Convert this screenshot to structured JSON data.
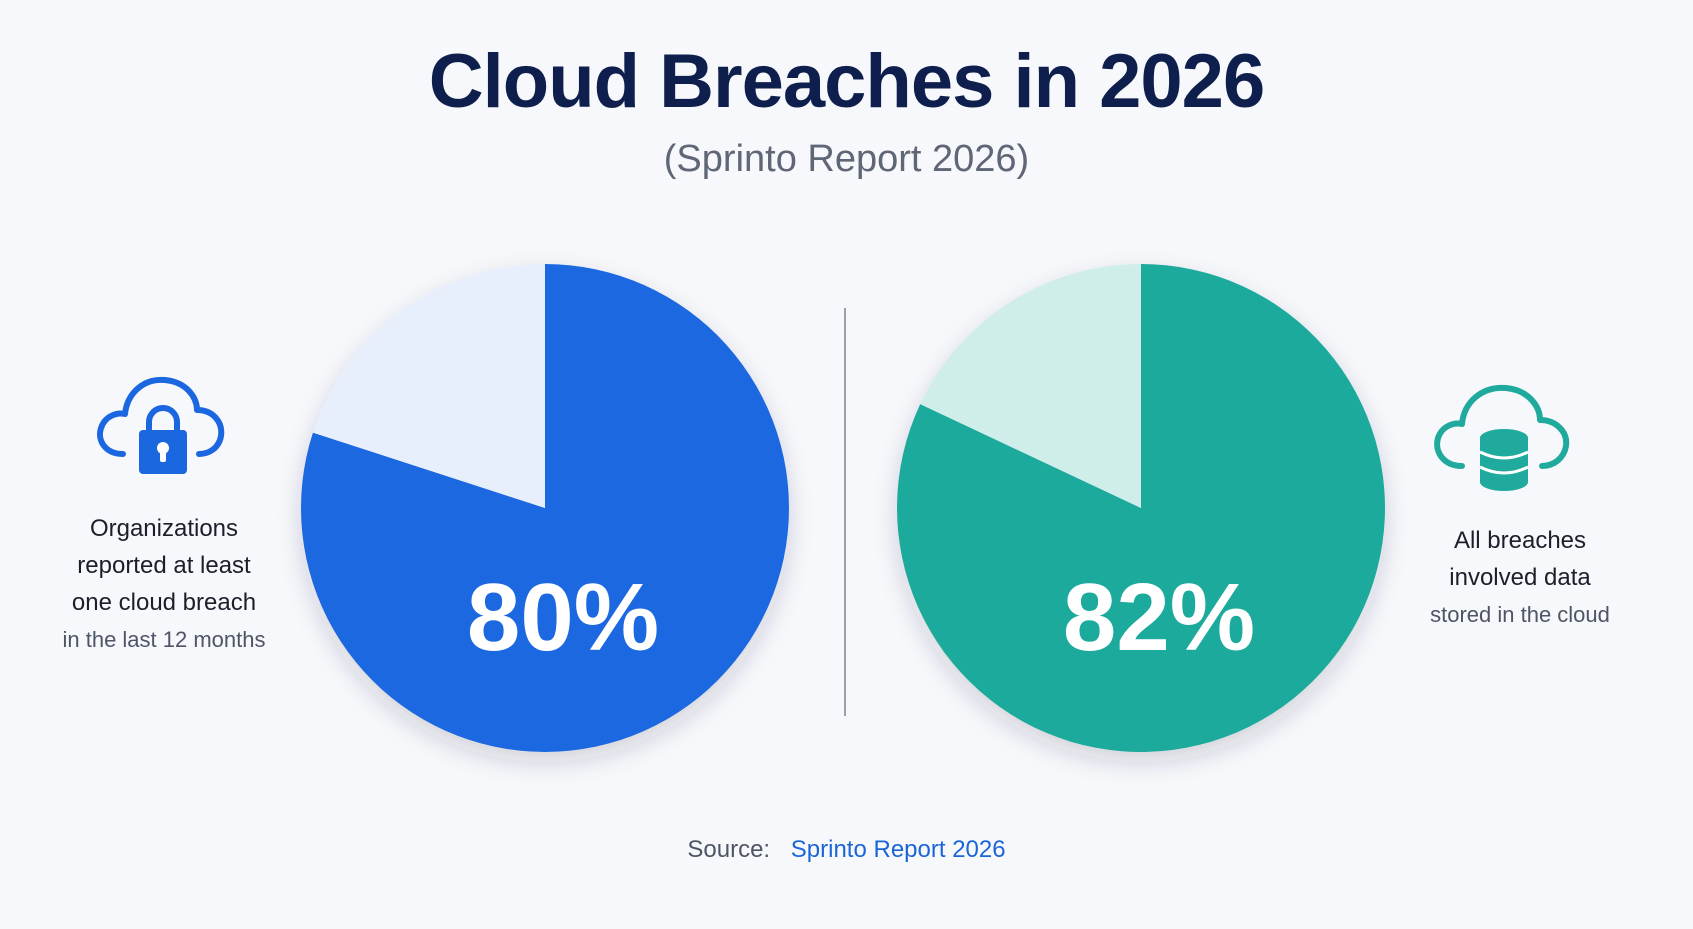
{
  "title": "Cloud Breaches in 2026",
  "subtitle": "(Sprinto Report 2026)",
  "source": {
    "label": "Source:",
    "link_text": "Sprinto Report 2026"
  },
  "left_stat": {
    "icon": "cloud-lock-icon",
    "lines": [
      "Organizations",
      "reported at least",
      "one cloud breach"
    ],
    "note": "in the last 12 months"
  },
  "right_stat": {
    "icon": "cloud-database-icon",
    "lines": [
      "All breaches",
      "involved data"
    ],
    "note": "stored in the cloud"
  },
  "colors": {
    "blue": "#1b67e0",
    "blue_light": "#e7effc",
    "teal": "#1faa9d",
    "teal_light": "#cfeeea"
  },
  "chart_data": [
    {
      "type": "pie",
      "values": [
        80,
        20
      ],
      "value_label": "80%",
      "colors": [
        "#1b67e0",
        "#e7effc"
      ]
    },
    {
      "type": "pie",
      "values": [
        82,
        18
      ],
      "value_label": "82%",
      "colors": [
        "#1faa9d",
        "#cfeeea"
      ]
    }
  ]
}
